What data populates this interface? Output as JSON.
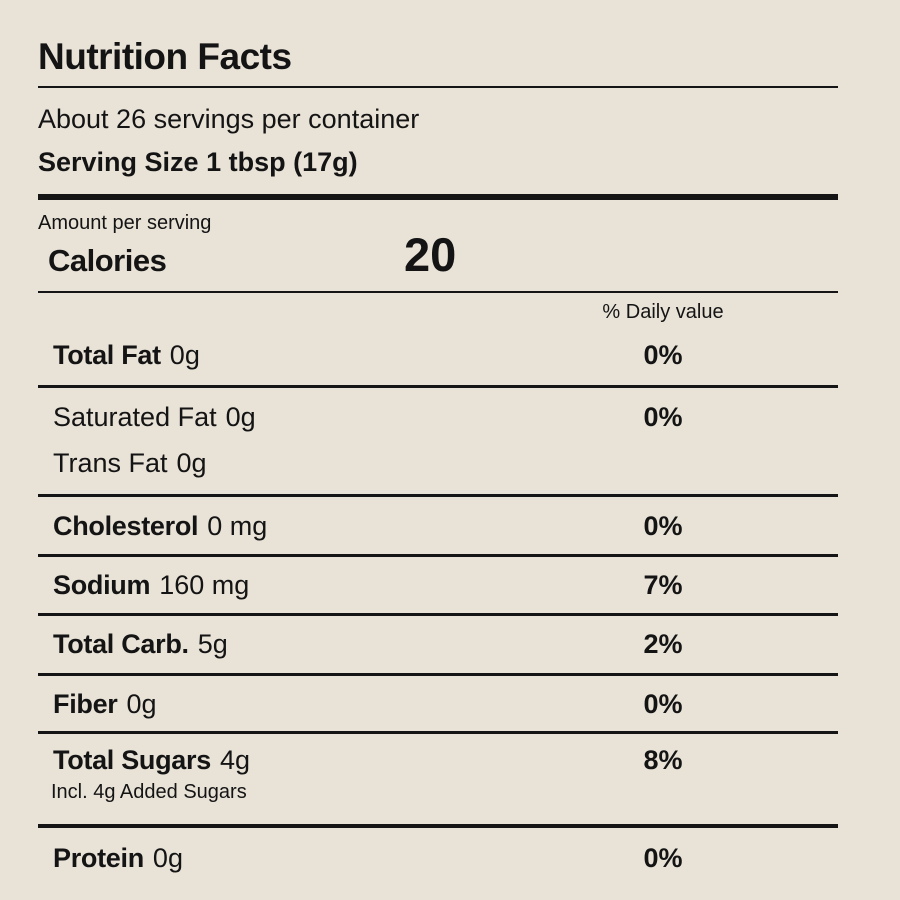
{
  "label": {
    "title": "Nutrition Facts",
    "servings_per_container": "About 26 servings per container",
    "serving_size": "Serving Size 1 tbsp (17g)",
    "amount_per_serving": "Amount per serving",
    "calories_label": "Calories",
    "calories_value": "20",
    "daily_value_header": "% Daily value"
  },
  "rows": [
    {
      "name": "Total Fat",
      "value": "0g",
      "percent": "0%"
    },
    {
      "name": "Saturated Fat",
      "value": "0g",
      "percent": "0%",
      "line2_name": "Trans Fat",
      "line2_value": "0g"
    },
    {
      "name": "Cholesterol",
      "value": "0 mg",
      "percent": "0%"
    },
    {
      "name": "Sodium",
      "value": "160 mg",
      "percent": "7%"
    },
    {
      "name": "Total Carb.",
      "value": "5g",
      "percent": "2%"
    },
    {
      "name": "Fiber",
      "value": "0g",
      "percent": "0%"
    },
    {
      "name": "Total Sugars",
      "value": "4g",
      "percent": "8%",
      "subline": "Incl. 4g Added Sugars"
    },
    {
      "name": "Protein",
      "value": "0g",
      "percent": "0%"
    }
  ],
  "colors": {
    "background": "#e8e2d7",
    "text": "#141414",
    "rule": "#151515"
  }
}
